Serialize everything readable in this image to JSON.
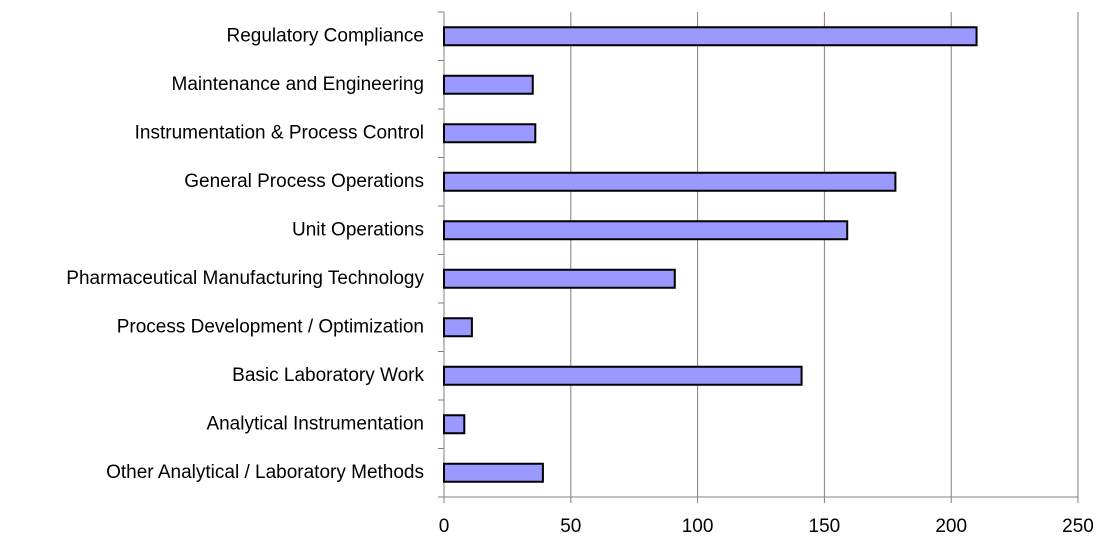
{
  "chart_data": {
    "type": "bar",
    "orientation": "horizontal",
    "categories": [
      "Regulatory Compliance",
      "Maintenance and Engineering",
      "Instrumentation & Process Control",
      "General Process Operations",
      "Unit Operations",
      "Pharmaceutical Manufacturing Technology",
      "Process Development / Optimization",
      "Basic Laboratory Work",
      "Analytical Instrumentation",
      "Other Analytical / Laboratory Methods"
    ],
    "values": [
      210,
      35,
      36,
      178,
      159,
      91,
      11,
      141,
      8,
      39
    ],
    "color": "#9999ff",
    "xlim": [
      0,
      250
    ],
    "xticks": [
      0,
      50,
      100,
      150,
      200,
      250
    ],
    "grid": true
  }
}
